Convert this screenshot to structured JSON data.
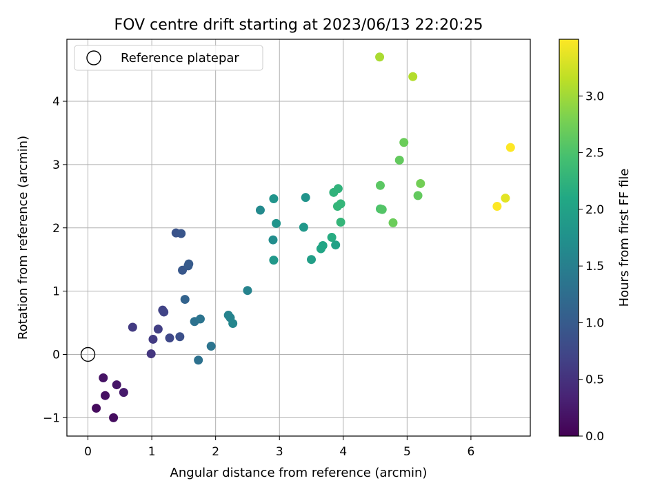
{
  "chart_data": {
    "type": "scatter",
    "title": "FOV centre drift starting at 2023/06/13 22:20:25",
    "xlabel": "Angular distance from reference (arcmin)",
    "ylabel": "Rotation from reference (arcmin)",
    "xlim": [
      -0.33,
      6.93
    ],
    "ylim": [
      -1.29,
      4.98
    ],
    "xticks": [
      "0",
      "1",
      "2",
      "3",
      "4",
      "5",
      "6"
    ],
    "xtick_values": [
      0,
      1,
      2,
      3,
      4,
      5,
      6
    ],
    "yticks": [
      "−1",
      "0",
      "1",
      "2",
      "3",
      "4"
    ],
    "ytick_values": [
      -1,
      0,
      1,
      2,
      3,
      4
    ],
    "grid": true,
    "legend": {
      "placement": "top-left",
      "entries": [
        "Reference platepar"
      ]
    },
    "reference_point": {
      "x": 0,
      "y": 0,
      "label": "Reference platepar"
    },
    "colorbar": {
      "label": "Hours from first FF file",
      "colormap": "viridis",
      "range": [
        0,
        3.5
      ],
      "ticks": [
        "0.0",
        "0.5",
        "1.0",
        "1.5",
        "2.0",
        "2.5",
        "3.0"
      ],
      "tick_values": [
        0.0,
        0.5,
        1.0,
        1.5,
        2.0,
        2.5,
        3.0
      ]
    },
    "points": [
      {
        "x": 0.13,
        "y": -0.85,
        "c": 0.1
      },
      {
        "x": 0.4,
        "y": -1.0,
        "c": 0.12
      },
      {
        "x": 0.27,
        "y": -0.65,
        "c": 0.15
      },
      {
        "x": 0.24,
        "y": -0.37,
        "c": 0.18
      },
      {
        "x": 0.45,
        "y": -0.48,
        "c": 0.2
      },
      {
        "x": 0.56,
        "y": -0.6,
        "c": 0.25
      },
      {
        "x": 0.99,
        "y": 0.01,
        "c": 0.55
      },
      {
        "x": 0.7,
        "y": 0.43,
        "c": 0.6
      },
      {
        "x": 1.02,
        "y": 0.24,
        "c": 0.6
      },
      {
        "x": 1.1,
        "y": 0.4,
        "c": 0.65
      },
      {
        "x": 1.17,
        "y": 0.7,
        "c": 0.68
      },
      {
        "x": 1.19,
        "y": 0.67,
        "c": 0.7
      },
      {
        "x": 1.28,
        "y": 0.26,
        "c": 0.75
      },
      {
        "x": 1.44,
        "y": 0.28,
        "c": 0.85
      },
      {
        "x": 1.38,
        "y": 1.92,
        "c": 0.9
      },
      {
        "x": 1.46,
        "y": 1.91,
        "c": 0.92
      },
      {
        "x": 1.48,
        "y": 1.33,
        "c": 0.95
      },
      {
        "x": 1.57,
        "y": 1.4,
        "c": 0.98
      },
      {
        "x": 1.58,
        "y": 1.43,
        "c": 1.0
      },
      {
        "x": 1.52,
        "y": 0.87,
        "c": 1.1
      },
      {
        "x": 1.67,
        "y": 0.52,
        "c": 1.3
      },
      {
        "x": 1.76,
        "y": 0.56,
        "c": 1.35
      },
      {
        "x": 1.73,
        "y": -0.09,
        "c": 1.3
      },
      {
        "x": 1.93,
        "y": 0.13,
        "c": 1.35
      },
      {
        "x": 2.2,
        "y": 0.62,
        "c": 1.55
      },
      {
        "x": 2.23,
        "y": 0.58,
        "c": 1.55
      },
      {
        "x": 2.27,
        "y": 0.49,
        "c": 1.6
      },
      {
        "x": 2.5,
        "y": 1.01,
        "c": 1.55
      },
      {
        "x": 2.7,
        "y": 2.28,
        "c": 1.65
      },
      {
        "x": 2.91,
        "y": 2.46,
        "c": 1.8
      },
      {
        "x": 2.9,
        "y": 1.81,
        "c": 1.7
      },
      {
        "x": 2.95,
        "y": 2.07,
        "c": 1.8
      },
      {
        "x": 2.91,
        "y": 1.49,
        "c": 1.85
      },
      {
        "x": 3.38,
        "y": 2.01,
        "c": 1.85
      },
      {
        "x": 3.41,
        "y": 2.48,
        "c": 1.8
      },
      {
        "x": 3.5,
        "y": 1.5,
        "c": 1.95
      },
      {
        "x": 3.65,
        "y": 1.67,
        "c": 2.05
      },
      {
        "x": 3.68,
        "y": 1.72,
        "c": 2.05
      },
      {
        "x": 3.82,
        "y": 1.85,
        "c": 2.15
      },
      {
        "x": 3.88,
        "y": 1.73,
        "c": 2.0
      },
      {
        "x": 3.85,
        "y": 2.56,
        "c": 2.25
      },
      {
        "x": 3.92,
        "y": 2.62,
        "c": 2.25
      },
      {
        "x": 3.91,
        "y": 2.34,
        "c": 2.3
      },
      {
        "x": 3.96,
        "y": 2.38,
        "c": 2.3
      },
      {
        "x": 3.96,
        "y": 2.09,
        "c": 2.3
      },
      {
        "x": 4.58,
        "y": 2.67,
        "c": 2.6
      },
      {
        "x": 4.58,
        "y": 2.3,
        "c": 2.5
      },
      {
        "x": 4.61,
        "y": 2.29,
        "c": 2.55
      },
      {
        "x": 4.78,
        "y": 2.08,
        "c": 2.7
      },
      {
        "x": 4.88,
        "y": 3.07,
        "c": 2.65
      },
      {
        "x": 4.95,
        "y": 3.35,
        "c": 2.7
      },
      {
        "x": 5.17,
        "y": 2.51,
        "c": 2.65
      },
      {
        "x": 5.21,
        "y": 2.7,
        "c": 2.75
      },
      {
        "x": 4.57,
        "y": 4.7,
        "c": 3.05
      },
      {
        "x": 5.09,
        "y": 4.39,
        "c": 3.1
      },
      {
        "x": 6.41,
        "y": 2.34,
        "c": 3.5
      },
      {
        "x": 6.54,
        "y": 2.47,
        "c": 3.35
      },
      {
        "x": 6.62,
        "y": 3.27,
        "c": 3.5
      }
    ]
  }
}
